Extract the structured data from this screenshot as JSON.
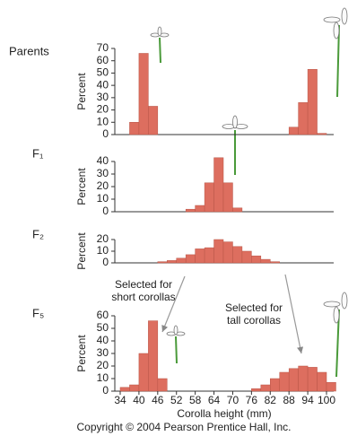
{
  "chart_data": [
    {
      "type": "histogram",
      "label": "Parents",
      "ylabel": "Percent",
      "ylim": [
        0,
        70
      ],
      "yticks": [
        0,
        10,
        20,
        30,
        40,
        50,
        60,
        70
      ],
      "color": "#dd6e5f",
      "histograms": [
        {
          "bins": [
            37,
            40,
            43,
            46
          ],
          "values": [
            10,
            66,
            23
          ]
        },
        {
          "bins": [
            88,
            91,
            94,
            97,
            100
          ],
          "values": [
            6,
            26,
            53,
            1
          ]
        }
      ]
    },
    {
      "type": "histogram",
      "label": "F₁",
      "ylabel": "Percent",
      "ylim": [
        0,
        40
      ],
      "yticks": [
        0,
        10,
        20,
        30,
        40
      ],
      "color": "#dd6e5f",
      "histograms": [
        {
          "bins": [
            55,
            58,
            61,
            64,
            67,
            70,
            73
          ],
          "values": [
            2,
            5,
            23,
            43,
            23,
            3
          ]
        }
      ]
    },
    {
      "type": "histogram",
      "label": "F₂",
      "ylabel": "Percent",
      "ylim": [
        0,
        20
      ],
      "yticks": [
        0,
        10,
        20
      ],
      "color": "#dd6e5f",
      "histograms": [
        {
          "bins": [
            46,
            49,
            52,
            55,
            58,
            61,
            64,
            67,
            70,
            73,
            76,
            79,
            82,
            85
          ],
          "values": [
            1,
            2,
            4,
            7,
            12,
            13,
            20,
            18,
            14,
            10,
            6,
            3,
            1
          ]
        }
      ]
    },
    {
      "type": "histogram",
      "label": "F₅",
      "ylabel": "Percent",
      "ylim": [
        0,
        60
      ],
      "yticks": [
        0,
        10,
        20,
        30,
        40,
        50,
        60
      ],
      "color": "#dd6e5f",
      "histograms": [
        {
          "bins": [
            34,
            37,
            40,
            43,
            46,
            49
          ],
          "values": [
            3,
            5,
            30,
            56,
            10
          ]
        },
        {
          "bins": [
            76,
            79,
            82,
            85,
            88,
            91,
            94,
            97,
            100,
            103
          ],
          "values": [
            2,
            5,
            10,
            15,
            18,
            20,
            19,
            15,
            7
          ]
        }
      ],
      "xlabel": "Corolla height (mm)",
      "xlim": [
        34,
        100
      ],
      "xticks": [
        34,
        40,
        46,
        52,
        58,
        64,
        70,
        76,
        82,
        88,
        94,
        100
      ],
      "annotations": [
        [
          "Selected for",
          "short corollas"
        ],
        [
          "Selected for",
          "tall corollas"
        ]
      ]
    }
  ],
  "footer": "Copyright © 2004 Pearson Prentice Hall, Inc."
}
